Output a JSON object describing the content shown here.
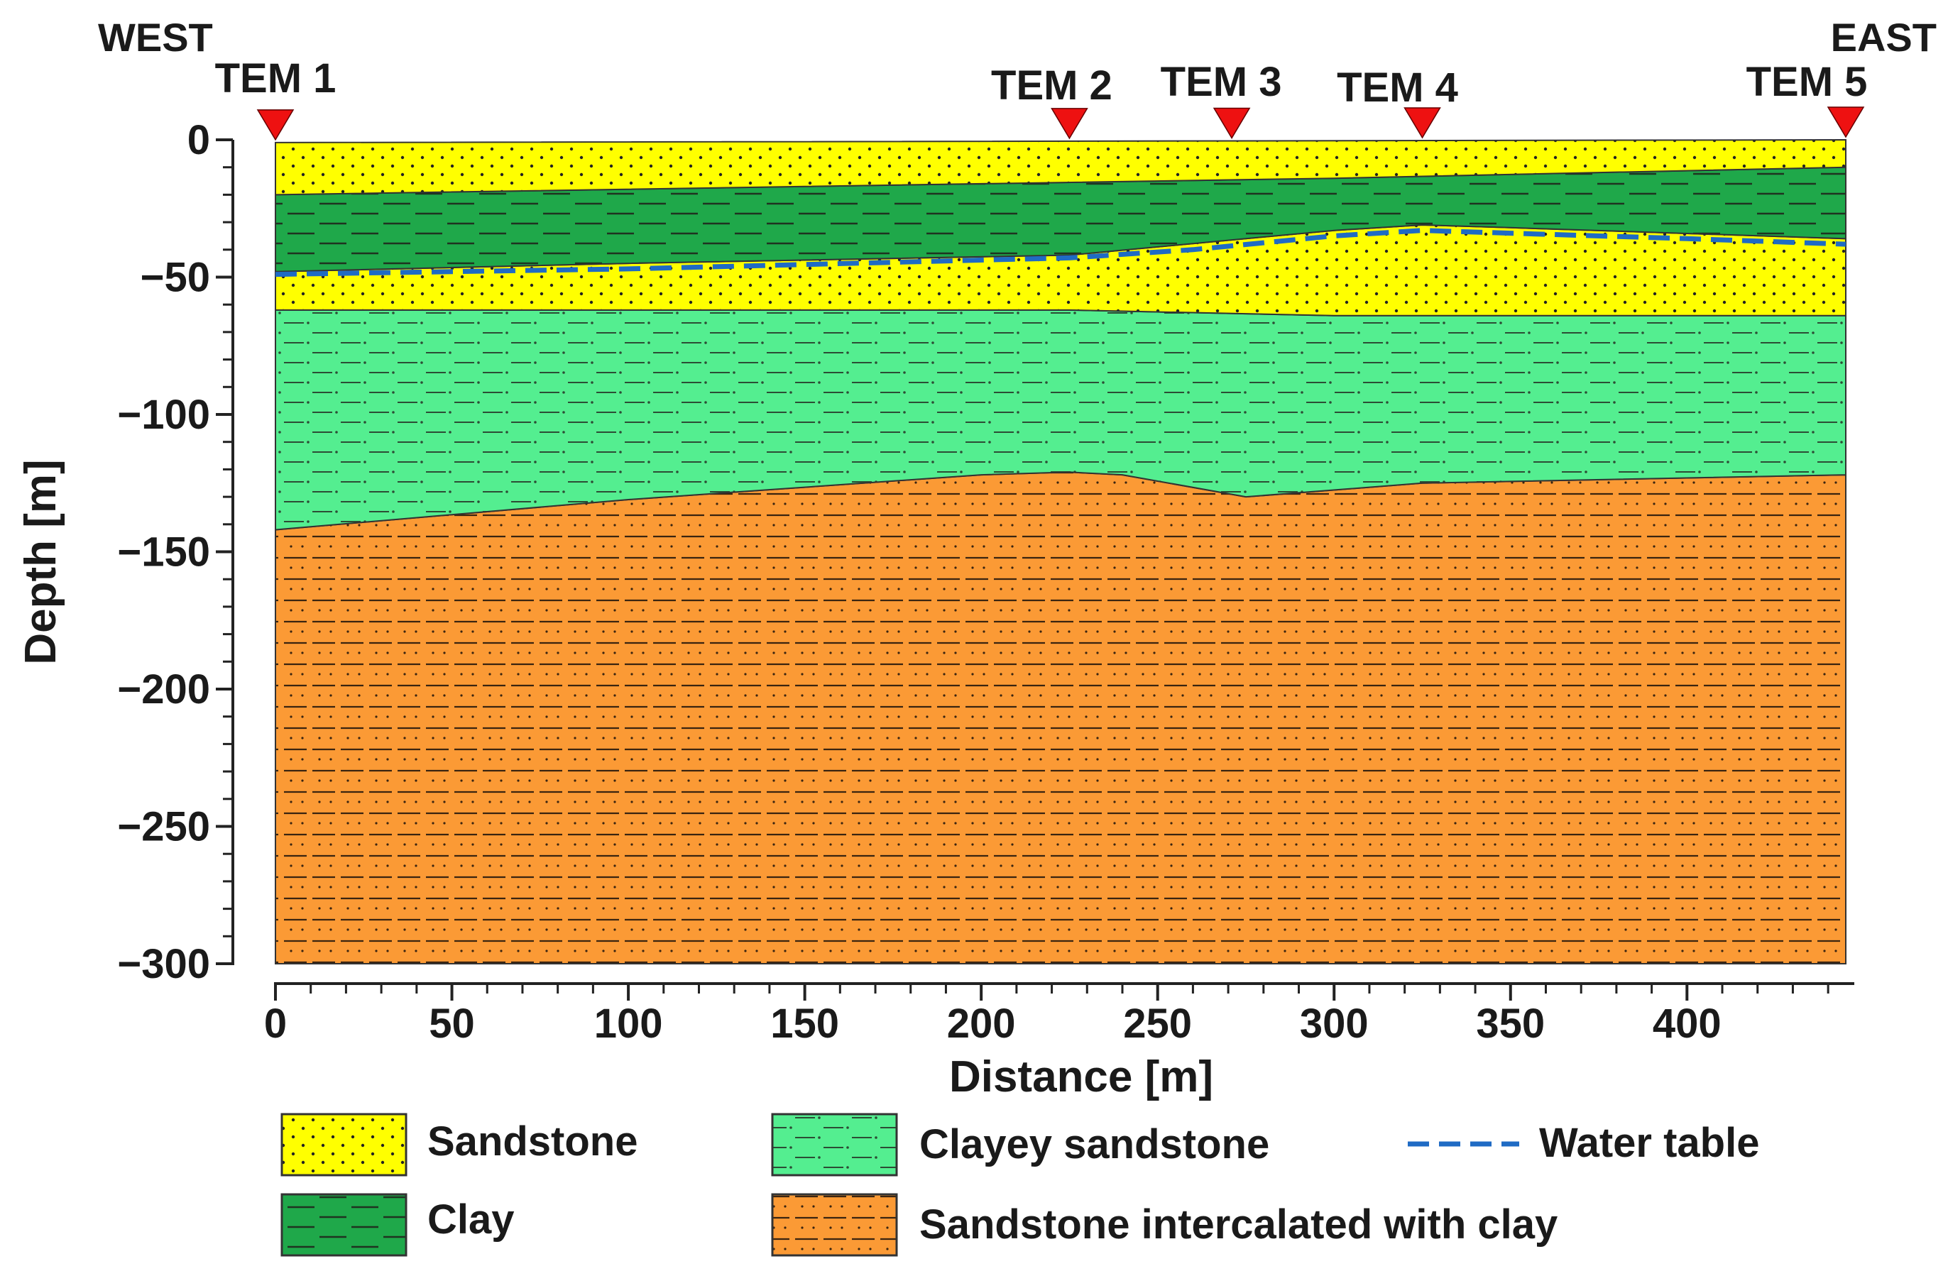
{
  "figure": {
    "type": "geological-cross-section",
    "west_label": "WEST",
    "east_label": "EAST",
    "x_axis": {
      "title": "Distance [m]",
      "range": [
        0,
        445
      ],
      "ticks": [
        0,
        50,
        100,
        150,
        200,
        250,
        300,
        350,
        400
      ],
      "tick_labels": [
        "0",
        "50",
        "100",
        "150",
        "200",
        "250",
        "300",
        "350",
        "400"
      ],
      "minor_step": 10
    },
    "y_axis": {
      "title": "Depth [m]",
      "range": [
        -300,
        0
      ],
      "ticks": [
        0,
        -50,
        -100,
        -150,
        -200,
        -250,
        -300
      ],
      "tick_labels": [
        "0",
        "−50",
        "−100",
        "−150",
        "−200",
        "−250",
        "−300"
      ],
      "minor_step": 10
    },
    "stations": [
      {
        "label": "TEM 1",
        "distance": 0
      },
      {
        "label": "TEM 2",
        "distance": 225
      },
      {
        "label": "TEM 3",
        "distance": 271
      },
      {
        "label": "TEM 4",
        "distance": 325
      },
      {
        "label": "TEM 5",
        "distance": 445
      }
    ],
    "surface": [
      [
        0,
        -1
      ],
      [
        445,
        0
      ]
    ],
    "clay_top": [
      [
        0,
        -20
      ],
      [
        150,
        -17
      ],
      [
        300,
        -14
      ],
      [
        445,
        -10
      ]
    ],
    "sandstone2_top": [
      [
        0,
        -48
      ],
      [
        100,
        -45
      ],
      [
        225,
        -42
      ],
      [
        300,
        -33
      ],
      [
        325,
        -31
      ],
      [
        350,
        -32
      ],
      [
        445,
        -36
      ]
    ],
    "clayey_top": [
      [
        0,
        -62
      ],
      [
        225,
        -62
      ],
      [
        300,
        -64
      ],
      [
        445,
        -64
      ]
    ],
    "sic_top": [
      [
        0,
        -142
      ],
      [
        100,
        -131
      ],
      [
        200,
        -122
      ],
      [
        225,
        -121
      ],
      [
        240,
        -122
      ],
      [
        275,
        -130
      ],
      [
        325,
        -125
      ],
      [
        445,
        -122
      ]
    ],
    "bottom": [
      [
        0,
        -300
      ],
      [
        445,
        -300
      ]
    ],
    "water_table": [
      [
        0,
        -49
      ],
      [
        100,
        -47
      ],
      [
        225,
        -43
      ],
      [
        260,
        -40
      ],
      [
        300,
        -35
      ],
      [
        325,
        -33
      ],
      [
        350,
        -34
      ],
      [
        400,
        -36
      ],
      [
        445,
        -38
      ]
    ],
    "colors": {
      "sandstone": "#ffff00",
      "clay": "#1fa84a",
      "clayey_sandstone": "#54ee90",
      "sandstone_clay": "#fb9a35",
      "water_table": "#1f6bc4",
      "marker": "#ee1111",
      "pattern": "#222222"
    }
  },
  "legend": {
    "sandstone": "Sandstone",
    "clay": "Clay",
    "clayey_sandstone": "Clayey sandstone",
    "sandstone_clay": "Sandstone intercalated with clay",
    "water_table": "Water table"
  }
}
